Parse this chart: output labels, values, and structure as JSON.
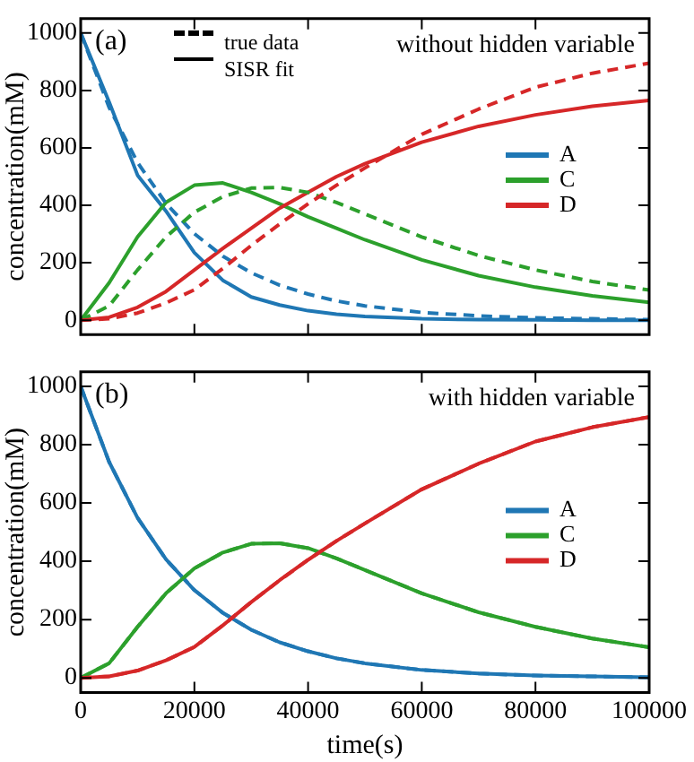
{
  "chart_data": [
    {
      "type": "line",
      "x": [
        0,
        5000,
        10000,
        15000,
        20000,
        25000,
        30000,
        35000,
        40000,
        45000,
        50000,
        60000,
        70000,
        80000,
        90000,
        100000
      ],
      "ylabel": "concentration(mM)",
      "xlim": [
        0,
        100000
      ],
      "xticks": [
        0,
        20000,
        40000,
        60000,
        80000,
        100000
      ],
      "ylim": [
        -50,
        1050
      ],
      "yticks": [
        0,
        200,
        400,
        600,
        800,
        1000
      ],
      "tick_labels": "y",
      "grid": false,
      "legend": "right",
      "marker": "none",
      "annotations": [
        "(a)",
        "without hidden variable",
        "true data",
        "SISR fit"
      ],
      "series": [
        {
          "name": "A",
          "color": "#1f77b4",
          "line_style": "solid",
          "values": [
            1000,
            760,
            505,
            380,
            235,
            139,
            81,
            53,
            33,
            21,
            13,
            5,
            2,
            1,
            0,
            0
          ]
        },
        {
          "name": "C",
          "color": "#2ca02c",
          "line_style": "solid",
          "values": [
            0,
            130,
            290,
            410,
            470,
            478,
            445,
            405,
            360,
            320,
            280,
            210,
            155,
            115,
            85,
            62
          ]
        },
        {
          "name": "D",
          "color": "#d62728",
          "line_style": "solid",
          "values": [
            0,
            10,
            45,
            100,
            175,
            250,
            320,
            390,
            445,
            500,
            545,
            620,
            675,
            715,
            745,
            765
          ]
        },
        {
          "color": "#1f77b4",
          "line_style": "dashed",
          "values": [
            1000,
            741,
            549,
            407,
            301,
            223,
            165,
            122,
            91,
            67,
            50,
            27,
            15,
            8,
            5,
            2
          ]
        },
        {
          "color": "#2ca02c",
          "line_style": "dashed",
          "values": [
            0,
            50,
            175,
            290,
            376,
            430,
            460,
            462,
            445,
            410,
            370,
            290,
            225,
            175,
            135,
            105
          ]
        },
        {
          "color": "#d62728",
          "line_style": "dashed",
          "values": [
            0,
            5,
            25,
            60,
            106,
            180,
            260,
            335,
            405,
            470,
            530,
            647,
            735,
            811,
            860,
            895
          ]
        }
      ]
    },
    {
      "type": "line",
      "x": [
        0,
        5000,
        10000,
        15000,
        20000,
        25000,
        30000,
        35000,
        40000,
        45000,
        50000,
        60000,
        70000,
        80000,
        90000,
        100000
      ],
      "xlabel": "time(s)",
      "ylabel": "concentration(mM)",
      "xlim": [
        0,
        100000
      ],
      "xticks": [
        0,
        20000,
        40000,
        60000,
        80000,
        100000
      ],
      "ylim": [
        -50,
        1050
      ],
      "yticks": [
        0,
        200,
        400,
        600,
        800,
        1000
      ],
      "grid": false,
      "legend": "right",
      "marker": "none",
      "annotations": [
        "(b)",
        "with hidden variable"
      ],
      "series": [
        {
          "name": "A",
          "color": "#1f77b4",
          "line_style": "solid",
          "values": [
            1000,
            741,
            549,
            407,
            301,
            223,
            165,
            122,
            91,
            67,
            50,
            27,
            15,
            8,
            5,
            2
          ]
        },
        {
          "name": "C",
          "color": "#2ca02c",
          "line_style": "solid",
          "values": [
            0,
            50,
            175,
            290,
            376,
            430,
            460,
            462,
            445,
            410,
            370,
            290,
            225,
            175,
            135,
            105
          ]
        },
        {
          "name": "D",
          "color": "#d62728",
          "line_style": "solid",
          "values": [
            0,
            5,
            25,
            60,
            106,
            180,
            260,
            335,
            405,
            470,
            530,
            647,
            735,
            811,
            860,
            895
          ]
        },
        {
          "color": "#1f77b4",
          "line_style": "dashed",
          "values": [
            1000,
            741,
            549,
            407,
            301,
            223,
            165,
            122,
            91,
            67,
            50,
            27,
            15,
            8,
            5,
            2
          ]
        },
        {
          "color": "#2ca02c",
          "line_style": "dashed",
          "values": [
            0,
            50,
            175,
            290,
            376,
            430,
            460,
            462,
            445,
            410,
            370,
            290,
            225,
            175,
            135,
            105
          ]
        },
        {
          "color": "#d62728",
          "line_style": "dashed",
          "values": [
            0,
            5,
            25,
            60,
            106,
            180,
            260,
            335,
            405,
            470,
            530,
            647,
            735,
            811,
            860,
            895
          ]
        }
      ]
    }
  ]
}
